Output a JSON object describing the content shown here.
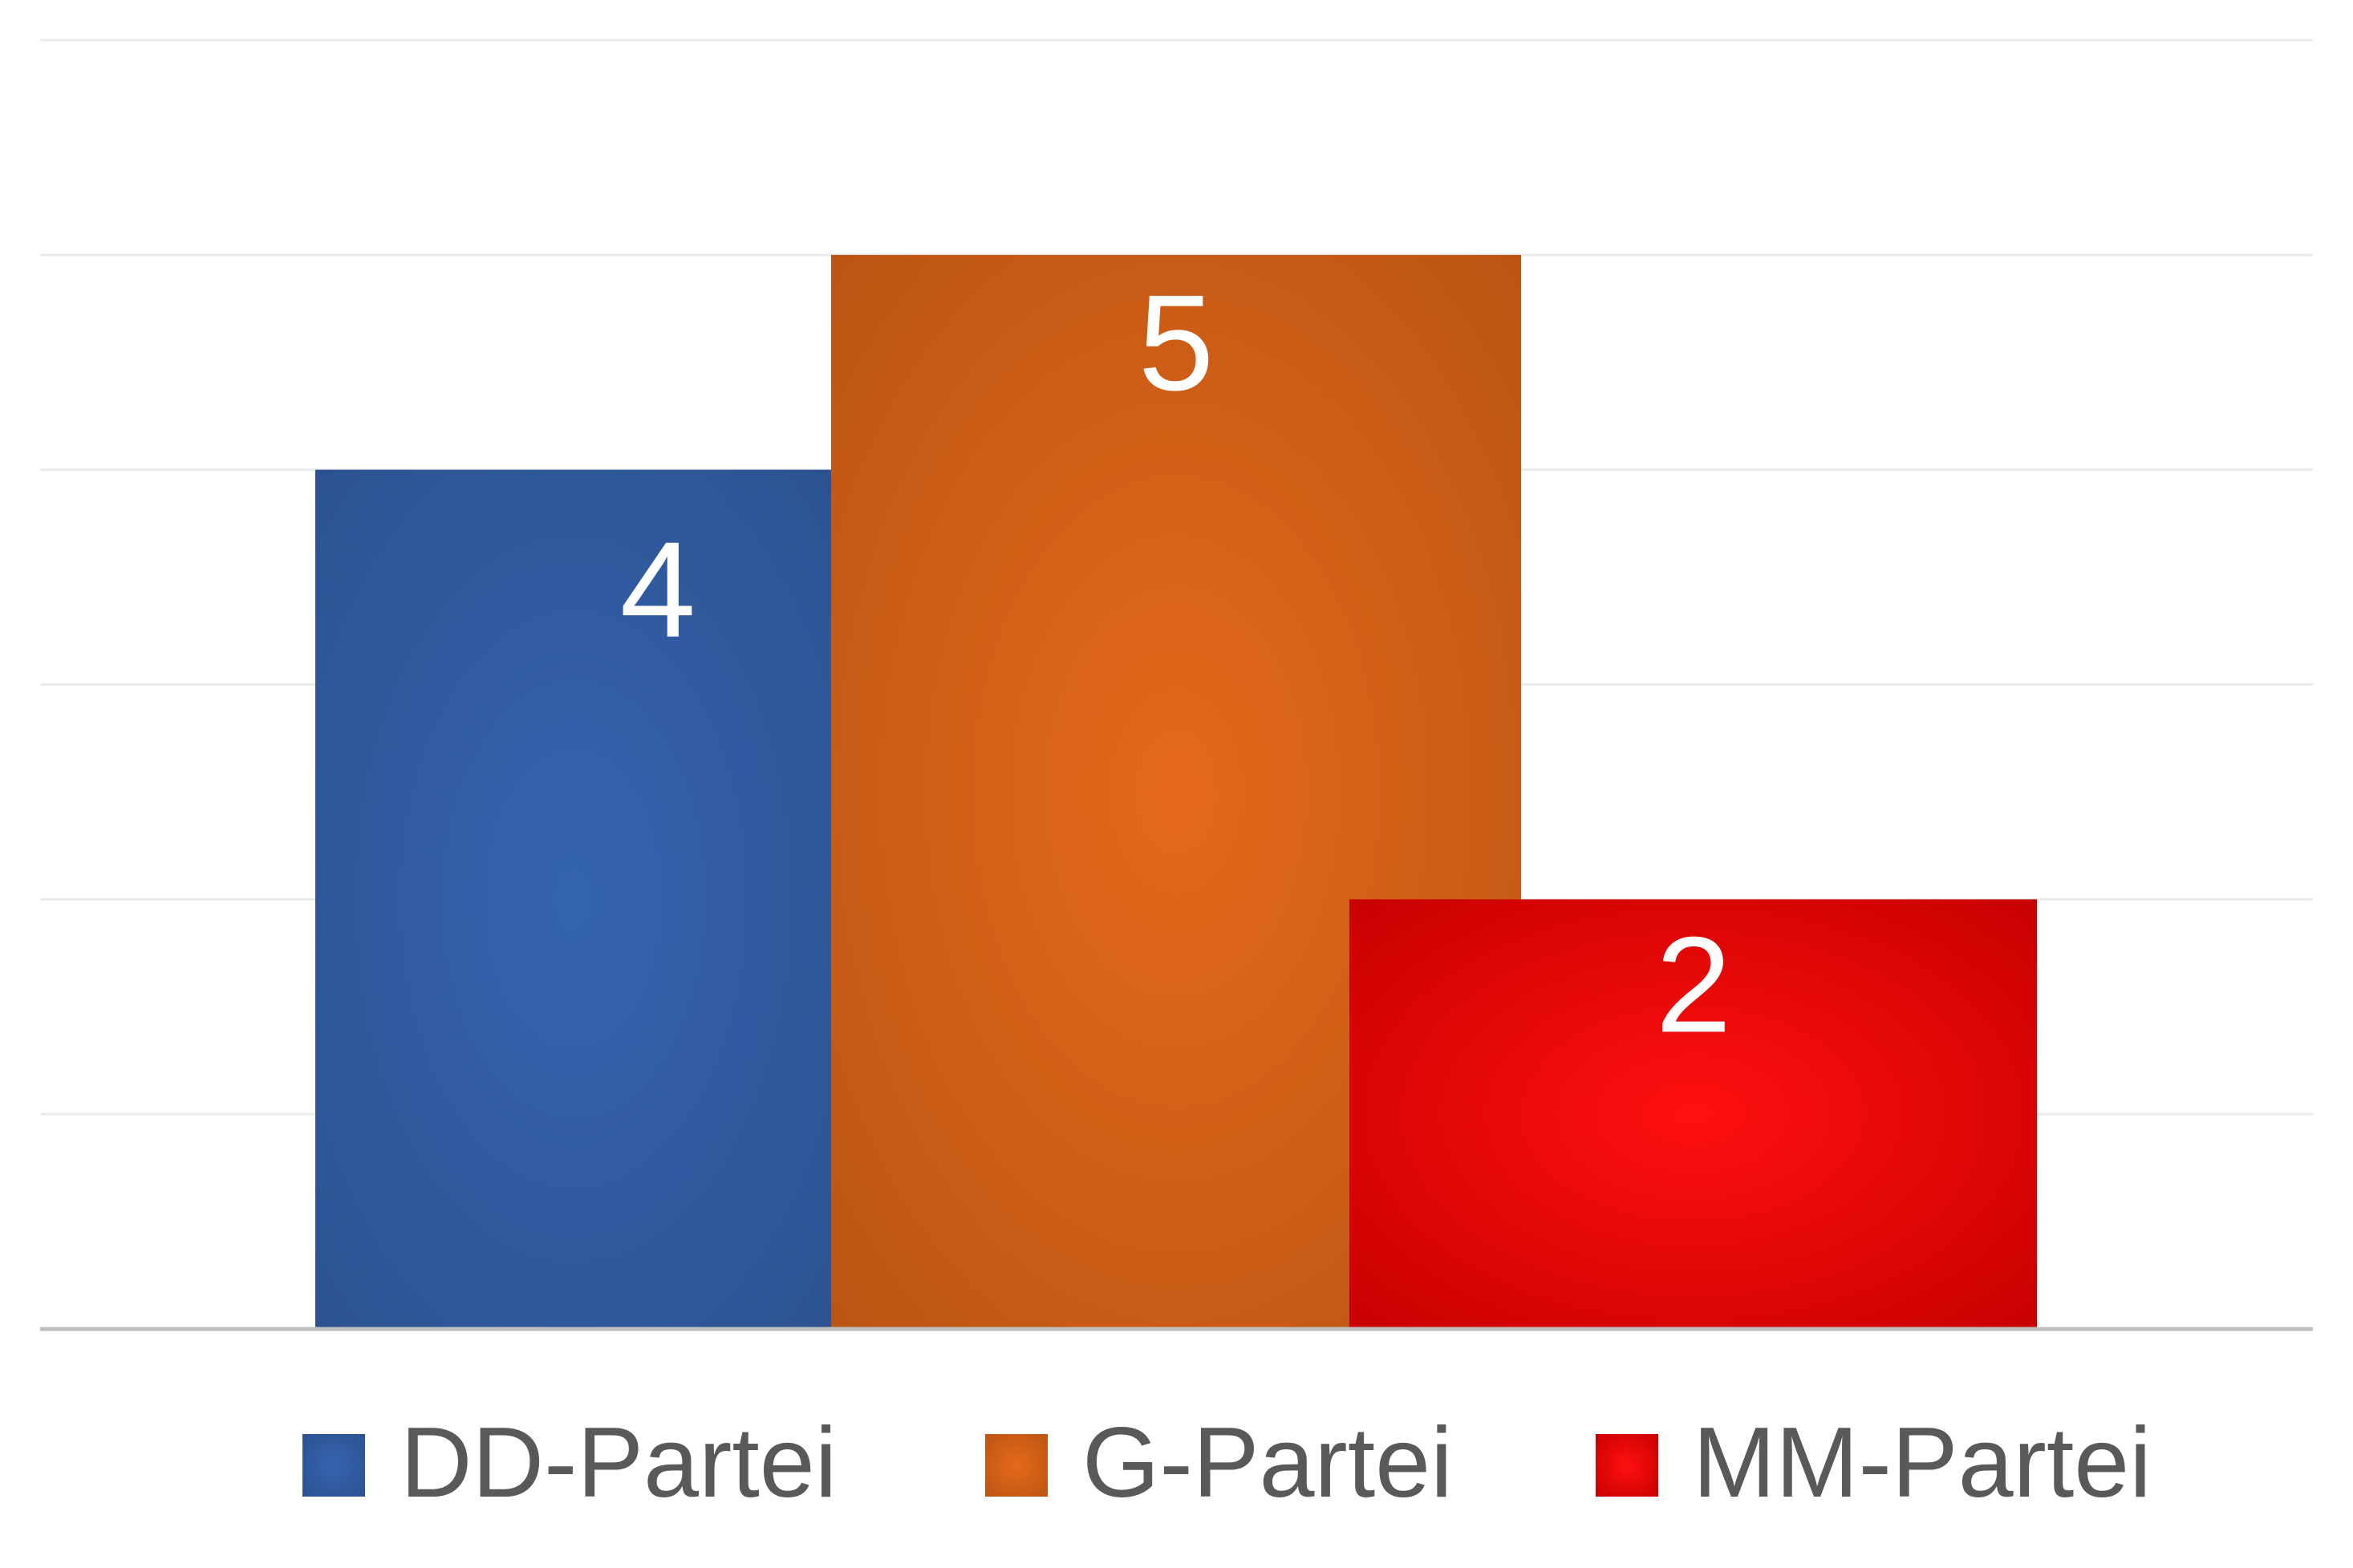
{
  "chart_data": {
    "type": "bar",
    "categories": [
      "DD-Partei",
      "G-Partei",
      "MM-Partei"
    ],
    "values": [
      4,
      5,
      2
    ],
    "data_labels": [
      "4",
      "5",
      "2"
    ],
    "title": "",
    "xlabel": "",
    "ylabel": "",
    "ylim": [
      0,
      6
    ],
    "grid": true,
    "legend": "bottom",
    "bars_overlap": true,
    "colors": [
      "#3564b0",
      "#e5691a",
      "#ff1010"
    ],
    "colors_dark": [
      "#2c5291",
      "#bb5514",
      "#c80000"
    ],
    "gridline_color": "#ececec",
    "axis_color": "#bfbfbf"
  },
  "legend": {
    "items": [
      {
        "label": "DD-Partei"
      },
      {
        "label": "G-Partei"
      },
      {
        "label": "MM-Partei"
      }
    ]
  }
}
